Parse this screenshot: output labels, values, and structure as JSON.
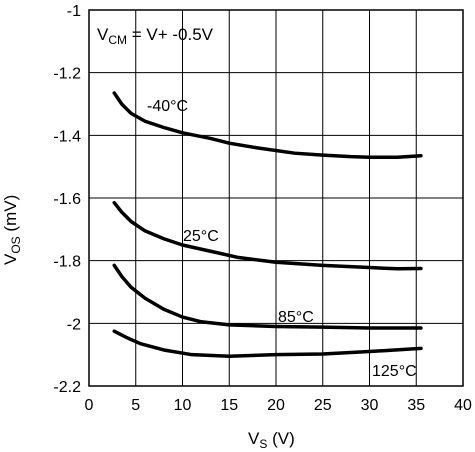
{
  "chart_data": {
    "type": "line",
    "title": "",
    "xlabel": {
      "main": "V",
      "sub": "S",
      "unit": " (V)"
    },
    "ylabel": {
      "main": "V",
      "sub": "OS",
      "unit": " (mV)"
    },
    "xlim": [
      0,
      40
    ],
    "ylim": [
      -2.2,
      -1
    ],
    "xticks": [
      0,
      5,
      10,
      15,
      20,
      25,
      30,
      35,
      40
    ],
    "xtick_labels": [
      "0",
      "5",
      "10",
      "15",
      "20",
      "25",
      "30",
      "35",
      "40"
    ],
    "yticks": [
      -2.2,
      -2,
      -1.8,
      -1.6,
      -1.4,
      -1.2,
      -1
    ],
    "ytick_labels": [
      "-2.2",
      "-2",
      "-1.8",
      "-1.6",
      "-1.4",
      "-1.2",
      "-1"
    ],
    "grid": true,
    "legend": "none",
    "annotation": {
      "pre": "V",
      "sub": "CM",
      "post": " = V+ -0.5V"
    },
    "line_color": "#000000",
    "series": [
      {
        "name": "-40°C",
        "x": [
          2.7,
          3.5,
          4.5,
          6,
          8,
          10,
          13,
          15,
          18,
          22,
          25,
          28,
          30,
          33,
          35.5
        ],
        "y": [
          -1.265,
          -1.3,
          -1.33,
          -1.355,
          -1.375,
          -1.392,
          -1.41,
          -1.425,
          -1.44,
          -1.457,
          -1.463,
          -1.468,
          -1.47,
          -1.47,
          -1.465
        ]
      },
      {
        "name": "25°C",
        "x": [
          2.7,
          3.5,
          4.5,
          6,
          8,
          10,
          13,
          16,
          20,
          25,
          30,
          33,
          35.5
        ],
        "y": [
          -1.615,
          -1.645,
          -1.675,
          -1.705,
          -1.73,
          -1.75,
          -1.77,
          -1.79,
          -1.805,
          -1.815,
          -1.822,
          -1.826,
          -1.825
        ]
      },
      {
        "name": "85°C",
        "x": [
          2.7,
          3.5,
          4.5,
          6,
          8,
          10,
          12,
          15,
          20,
          25,
          30,
          35.5
        ],
        "y": [
          -1.815,
          -1.85,
          -1.885,
          -1.92,
          -1.955,
          -1.98,
          -1.995,
          -2.005,
          -2.01,
          -2.012,
          -2.015,
          -2.015
        ]
      },
      {
        "name": "125°C",
        "x": [
          2.7,
          4,
          5.5,
          8,
          11,
          15,
          20,
          25,
          30,
          35.5
        ],
        "y": [
          -2.025,
          -2.045,
          -2.065,
          -2.085,
          -2.1,
          -2.105,
          -2.1,
          -2.098,
          -2.09,
          -2.08
        ]
      }
    ]
  }
}
